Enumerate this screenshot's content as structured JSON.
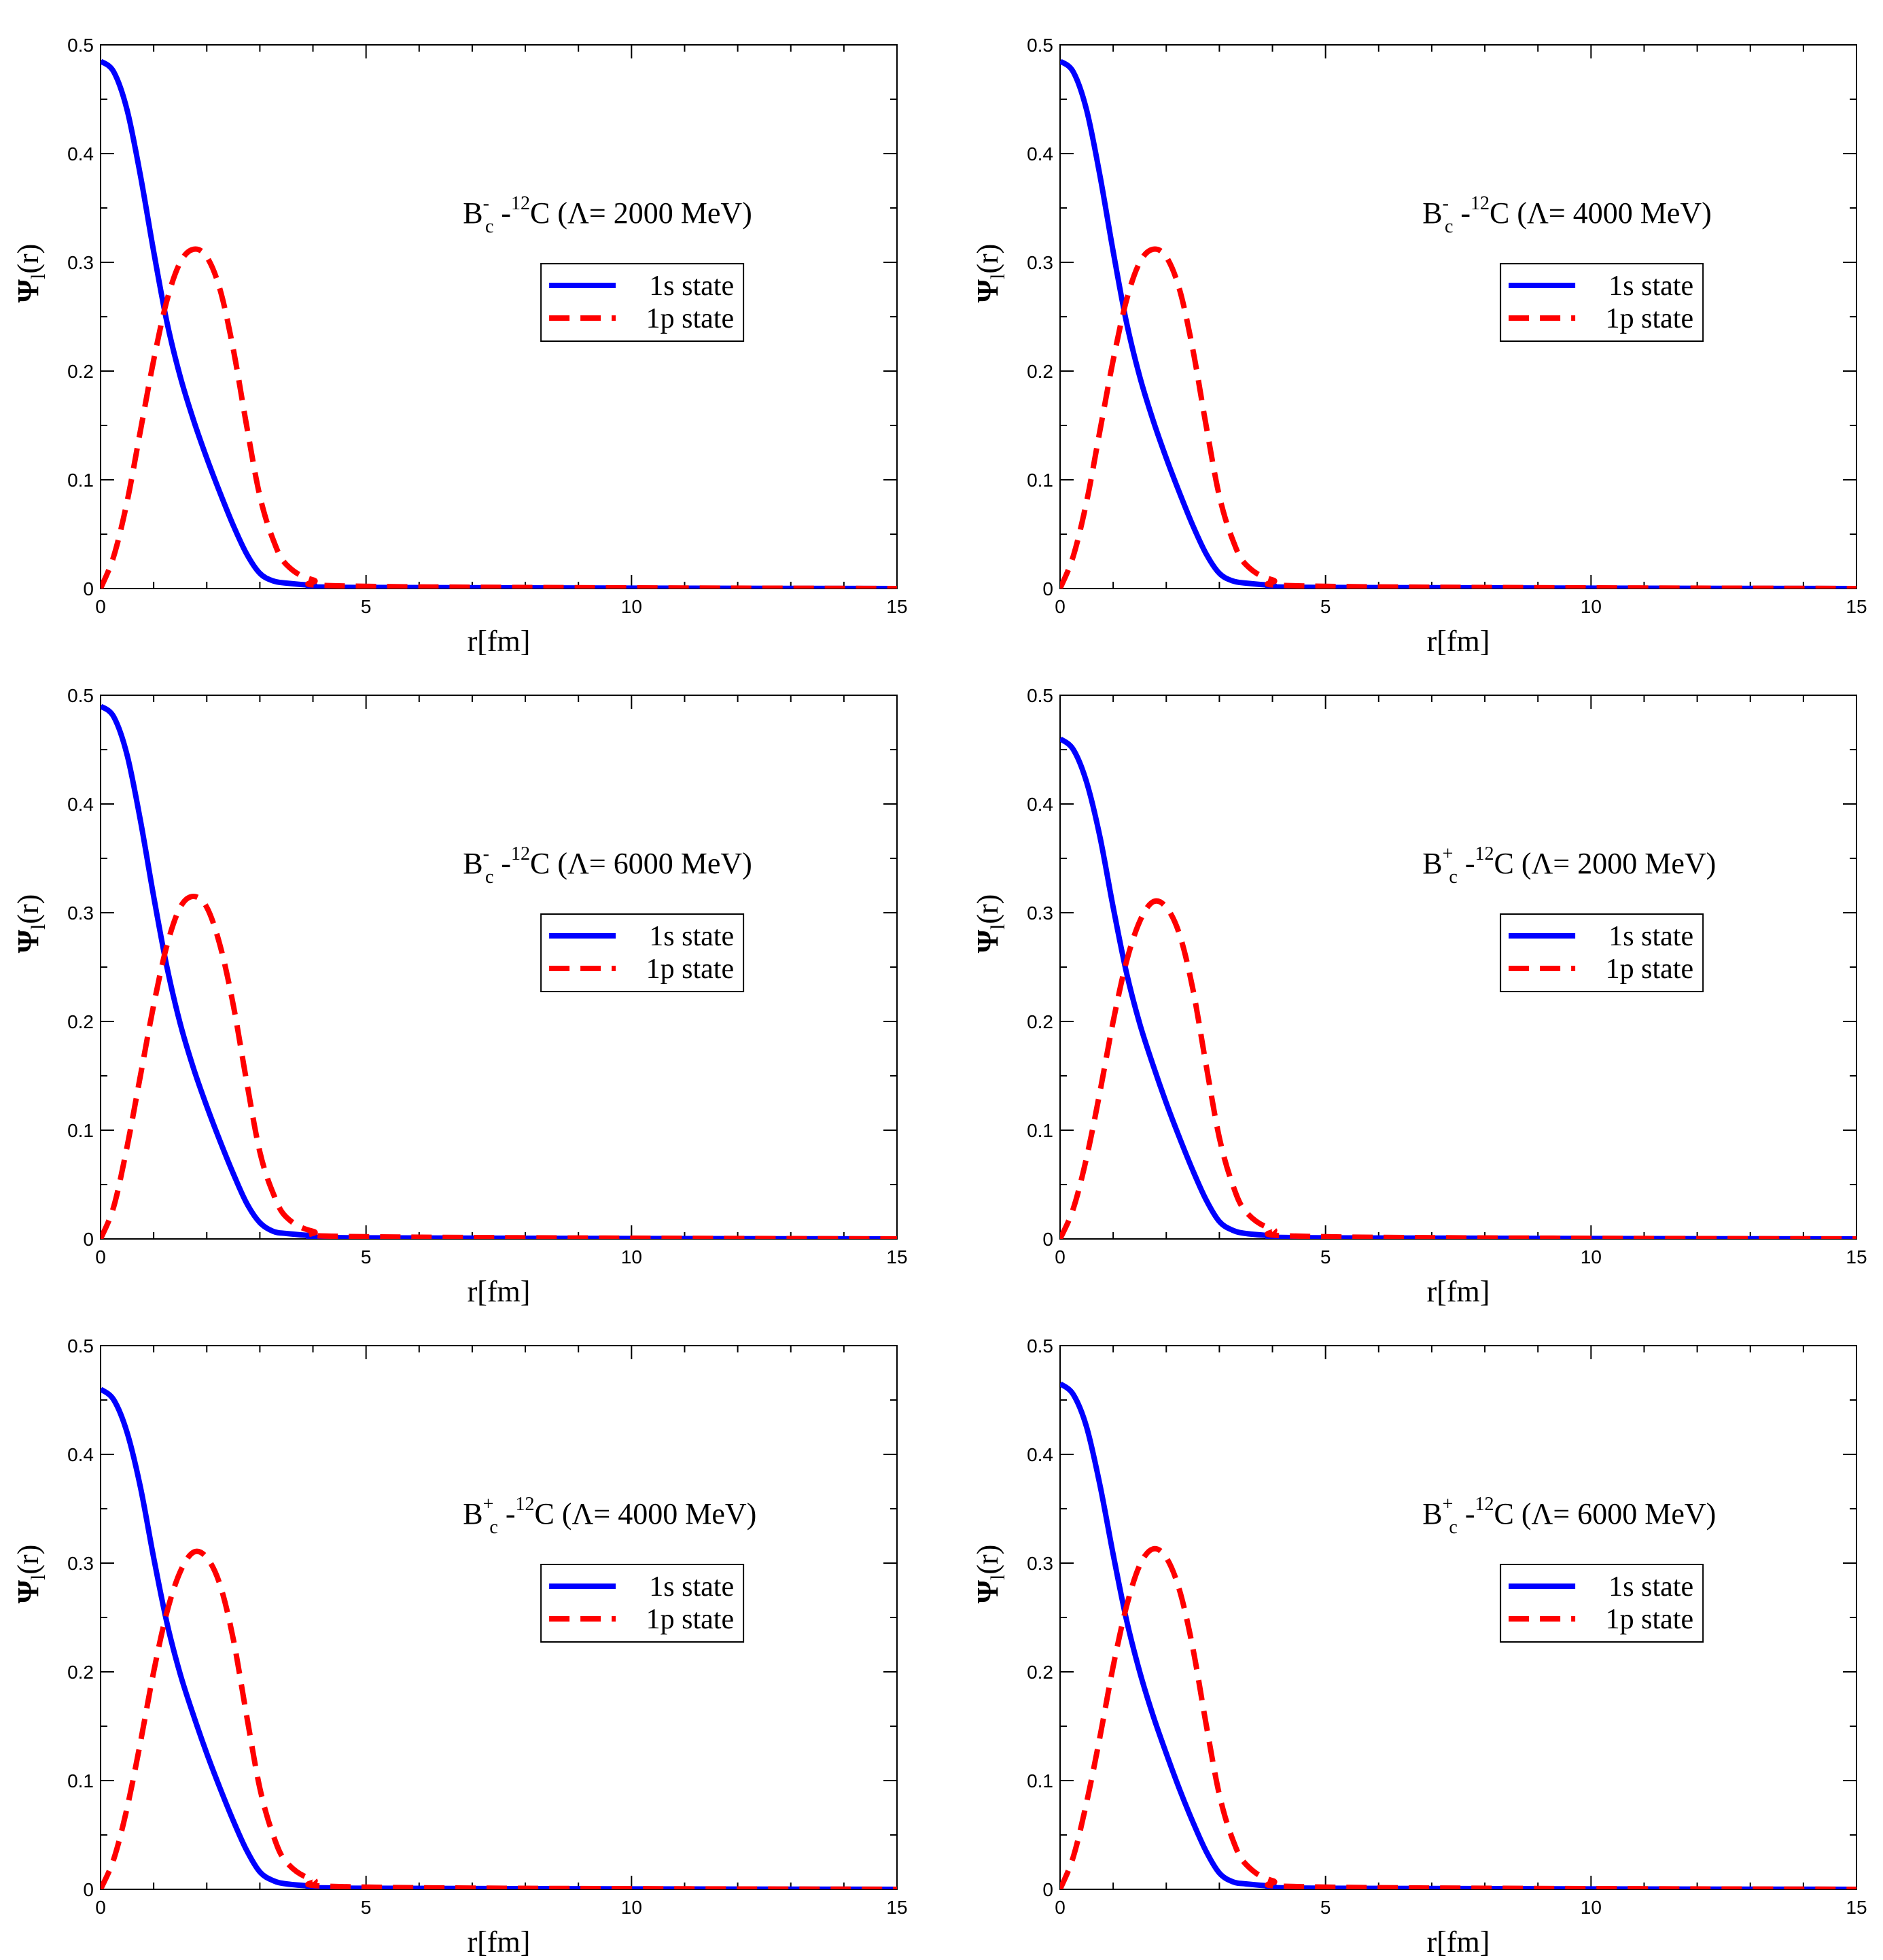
{
  "chart_data": [
    {
      "type": "line",
      "title_parts": {
        "base": "B",
        "sup": "-",
        "sub": "c",
        "mid": " -",
        "iso": "12",
        "rest": "C (Λ= 2000 MeV)"
      },
      "xlabel": "r[fm]",
      "ylabel_parts": {
        "base": "Ψ",
        "sub": "l",
        "rest": "(r)"
      },
      "xlim": [
        0,
        15
      ],
      "ylim": [
        0,
        0.5
      ],
      "x_ticks": [
        "0",
        "5",
        "10",
        "15"
      ],
      "y_ticks": [
        "0",
        "0.1",
        "0.2",
        "0.3",
        "0.4",
        "0.5"
      ],
      "legend": [
        "1s state",
        "1p state"
      ],
      "series": [
        {
          "name": "1s state",
          "color": "#0000ff",
          "style": "solid",
          "x": [
            0,
            0.25,
            0.5,
            0.75,
            1.0,
            1.25,
            1.5,
            1.75,
            2.0,
            2.25,
            2.5,
            2.75,
            3.0,
            3.25,
            3.5,
            4.0,
            5.0,
            15
          ],
          "y": [
            0.485,
            0.475,
            0.44,
            0.38,
            0.31,
            0.245,
            0.195,
            0.155,
            0.12,
            0.088,
            0.058,
            0.032,
            0.014,
            0.007,
            0.005,
            0.003,
            0.001,
            0.0
          ]
        },
        {
          "name": "1p state",
          "color": "#ff0000",
          "style": "dashed",
          "x": [
            0,
            0.25,
            0.5,
            0.75,
            1.0,
            1.25,
            1.5,
            1.75,
            2.0,
            2.25,
            2.5,
            2.75,
            3.0,
            3.25,
            3.5,
            4.0,
            5.0,
            15
          ],
          "y": [
            0.0,
            0.03,
            0.08,
            0.145,
            0.21,
            0.265,
            0.3,
            0.312,
            0.305,
            0.275,
            0.22,
            0.15,
            0.085,
            0.045,
            0.022,
            0.008,
            0.002,
            0.0
          ]
        }
      ]
    },
    {
      "type": "line",
      "title_parts": {
        "base": "B",
        "sup": "-",
        "sub": "c",
        "mid": " -",
        "iso": "12",
        "rest": "C (Λ= 4000 MeV)"
      },
      "xlabel": "r[fm]",
      "ylabel_parts": {
        "base": "Ψ",
        "sub": "l",
        "rest": "(r)"
      },
      "xlim": [
        0,
        15
      ],
      "ylim": [
        0,
        0.5
      ],
      "x_ticks": [
        "0",
        "5",
        "10",
        "15"
      ],
      "y_ticks": [
        "0",
        "0.1",
        "0.2",
        "0.3",
        "0.4",
        "0.5"
      ],
      "legend": [
        "1s state",
        "1p state"
      ],
      "series": [
        {
          "name": "1s state",
          "color": "#0000ff",
          "style": "solid",
          "x": [
            0,
            0.25,
            0.5,
            0.75,
            1.0,
            1.25,
            1.5,
            1.75,
            2.0,
            2.25,
            2.5,
            2.75,
            3.0,
            3.25,
            3.5,
            4.0,
            5.0,
            15
          ],
          "y": [
            0.485,
            0.475,
            0.44,
            0.38,
            0.31,
            0.245,
            0.195,
            0.155,
            0.12,
            0.088,
            0.058,
            0.032,
            0.014,
            0.007,
            0.005,
            0.003,
            0.001,
            0.0
          ]
        },
        {
          "name": "1p state",
          "color": "#ff0000",
          "style": "dashed",
          "x": [
            0,
            0.25,
            0.5,
            0.75,
            1.0,
            1.25,
            1.5,
            1.75,
            2.0,
            2.25,
            2.5,
            2.75,
            3.0,
            3.25,
            3.5,
            4.0,
            5.0,
            15
          ],
          "y": [
            0.0,
            0.03,
            0.08,
            0.145,
            0.21,
            0.265,
            0.3,
            0.312,
            0.305,
            0.275,
            0.22,
            0.15,
            0.085,
            0.045,
            0.022,
            0.008,
            0.002,
            0.0
          ]
        }
      ]
    },
    {
      "type": "line",
      "title_parts": {
        "base": "B",
        "sup": "-",
        "sub": "c",
        "mid": " -",
        "iso": "12",
        "rest": "C (Λ= 6000 MeV)"
      },
      "xlabel": "r[fm]",
      "ylabel_parts": {
        "base": "Ψ",
        "sub": "l",
        "rest": "(r)"
      },
      "xlim": [
        0,
        15
      ],
      "ylim": [
        0,
        0.5
      ],
      "x_ticks": [
        "0",
        "5",
        "10",
        "15"
      ],
      "y_ticks": [
        "0",
        "0.1",
        "0.2",
        "0.3",
        "0.4",
        "0.5"
      ],
      "legend": [
        "1s state",
        "1p state"
      ],
      "series": [
        {
          "name": "1s state",
          "color": "#0000ff",
          "style": "solid",
          "x": [
            0,
            0.25,
            0.5,
            0.75,
            1.0,
            1.25,
            1.5,
            1.75,
            2.0,
            2.25,
            2.5,
            2.75,
            3.0,
            3.25,
            3.5,
            4.0,
            5.0,
            15
          ],
          "y": [
            0.49,
            0.48,
            0.445,
            0.385,
            0.315,
            0.25,
            0.198,
            0.157,
            0.122,
            0.09,
            0.06,
            0.033,
            0.015,
            0.007,
            0.005,
            0.003,
            0.001,
            0.0
          ]
        },
        {
          "name": "1p state",
          "color": "#ff0000",
          "style": "dashed",
          "x": [
            0,
            0.25,
            0.5,
            0.75,
            1.0,
            1.25,
            1.5,
            1.75,
            2.0,
            2.25,
            2.5,
            2.75,
            3.0,
            3.25,
            3.5,
            4.0,
            5.0,
            15
          ],
          "y": [
            0.0,
            0.03,
            0.085,
            0.15,
            0.215,
            0.27,
            0.305,
            0.315,
            0.305,
            0.27,
            0.215,
            0.145,
            0.08,
            0.042,
            0.02,
            0.007,
            0.002,
            0.0
          ]
        }
      ]
    },
    {
      "type": "line",
      "title_parts": {
        "base": "B",
        "sup": "+",
        "sub": "c",
        "mid": " -",
        "iso": "12",
        "rest": "C (Λ= 2000 MeV)"
      },
      "xlabel": "r[fm]",
      "ylabel_parts": {
        "base": "Ψ",
        "sub": "l",
        "rest": "(r)"
      },
      "xlim": [
        0,
        15
      ],
      "ylim": [
        0,
        0.5
      ],
      "x_ticks": [
        "0",
        "5",
        "10",
        "15"
      ],
      "y_ticks": [
        "0",
        "0.1",
        "0.2",
        "0.3",
        "0.4",
        "0.5"
      ],
      "legend": [
        "1s state",
        "1p state"
      ],
      "series": [
        {
          "name": "1s state",
          "color": "#0000ff",
          "style": "solid",
          "x": [
            0,
            0.25,
            0.5,
            0.75,
            1.0,
            1.25,
            1.5,
            1.75,
            2.0,
            2.25,
            2.5,
            2.75,
            3.0,
            3.25,
            3.5,
            4.0,
            5.0,
            15
          ],
          "y": [
            0.46,
            0.45,
            0.42,
            0.37,
            0.305,
            0.245,
            0.198,
            0.16,
            0.125,
            0.093,
            0.063,
            0.036,
            0.016,
            0.008,
            0.005,
            0.003,
            0.001,
            0.0
          ]
        },
        {
          "name": "1p state",
          "color": "#ff0000",
          "style": "dashed",
          "x": [
            0,
            0.25,
            0.5,
            0.75,
            1.0,
            1.25,
            1.5,
            1.75,
            2.0,
            2.25,
            2.5,
            2.75,
            3.0,
            3.25,
            3.5,
            4.0,
            5.0,
            15
          ],
          "y": [
            0.0,
            0.028,
            0.075,
            0.135,
            0.2,
            0.255,
            0.292,
            0.31,
            0.305,
            0.28,
            0.23,
            0.16,
            0.093,
            0.05,
            0.025,
            0.009,
            0.002,
            0.0
          ]
        }
      ]
    },
    {
      "type": "line",
      "title_parts": {
        "base": "B",
        "sup": "+",
        "sub": "c",
        "mid": " -",
        "iso": "12",
        "rest": "C (Λ= 4000 MeV)"
      },
      "xlabel": "r[fm]",
      "ylabel_parts": {
        "base": "Ψ",
        "sub": "l",
        "rest": "(r)"
      },
      "xlim": [
        0,
        15
      ],
      "ylim": [
        0,
        0.5
      ],
      "x_ticks": [
        "0",
        "5",
        "10",
        "15"
      ],
      "y_ticks": [
        "0",
        "0.1",
        "0.2",
        "0.3",
        "0.4",
        "0.5"
      ],
      "legend": [
        "1s state",
        "1p state"
      ],
      "series": [
        {
          "name": "1s state",
          "color": "#0000ff",
          "style": "solid",
          "x": [
            0,
            0.25,
            0.5,
            0.75,
            1.0,
            1.25,
            1.5,
            1.75,
            2.0,
            2.25,
            2.5,
            2.75,
            3.0,
            3.25,
            3.5,
            4.0,
            5.0,
            15
          ],
          "y": [
            0.46,
            0.45,
            0.42,
            0.37,
            0.305,
            0.245,
            0.198,
            0.16,
            0.125,
            0.093,
            0.063,
            0.036,
            0.016,
            0.008,
            0.005,
            0.003,
            0.001,
            0.0
          ]
        },
        {
          "name": "1p state",
          "color": "#ff0000",
          "style": "dashed",
          "x": [
            0,
            0.25,
            0.5,
            0.75,
            1.0,
            1.25,
            1.5,
            1.75,
            2.0,
            2.25,
            2.5,
            2.75,
            3.0,
            3.25,
            3.5,
            4.0,
            5.0,
            15
          ],
          "y": [
            0.0,
            0.028,
            0.075,
            0.135,
            0.2,
            0.255,
            0.292,
            0.31,
            0.305,
            0.28,
            0.23,
            0.16,
            0.093,
            0.05,
            0.025,
            0.009,
            0.002,
            0.0
          ]
        }
      ]
    },
    {
      "type": "line",
      "title_parts": {
        "base": "B",
        "sup": "+",
        "sub": "c",
        "mid": " -",
        "iso": "12",
        "rest": "C (Λ= 6000 MeV)"
      },
      "xlabel": "r[fm]",
      "ylabel_parts": {
        "base": "Ψ",
        "sub": "l",
        "rest": "(r)"
      },
      "xlim": [
        0,
        15
      ],
      "ylim": [
        0,
        0.5
      ],
      "x_ticks": [
        "0",
        "5",
        "10",
        "15"
      ],
      "y_ticks": [
        "0",
        "0.1",
        "0.2",
        "0.3",
        "0.4",
        "0.5"
      ],
      "legend": [
        "1s state",
        "1p state"
      ],
      "series": [
        {
          "name": "1s state",
          "color": "#0000ff",
          "style": "solid",
          "x": [
            0,
            0.25,
            0.5,
            0.75,
            1.0,
            1.25,
            1.5,
            1.75,
            2.0,
            2.25,
            2.5,
            2.75,
            3.0,
            3.25,
            3.5,
            4.0,
            5.0,
            15
          ],
          "y": [
            0.465,
            0.455,
            0.425,
            0.372,
            0.308,
            0.248,
            0.2,
            0.16,
            0.125,
            0.092,
            0.062,
            0.035,
            0.015,
            0.007,
            0.005,
            0.003,
            0.001,
            0.0
          ]
        },
        {
          "name": "1p state",
          "color": "#ff0000",
          "style": "dashed",
          "x": [
            0,
            0.25,
            0.5,
            0.75,
            1.0,
            1.25,
            1.5,
            1.75,
            2.0,
            2.25,
            2.5,
            2.75,
            3.0,
            3.25,
            3.5,
            4.0,
            5.0,
            15
          ],
          "y": [
            0.0,
            0.03,
            0.08,
            0.14,
            0.205,
            0.26,
            0.298,
            0.313,
            0.305,
            0.275,
            0.222,
            0.152,
            0.087,
            0.046,
            0.023,
            0.008,
            0.002,
            0.0
          ]
        }
      ]
    }
  ]
}
